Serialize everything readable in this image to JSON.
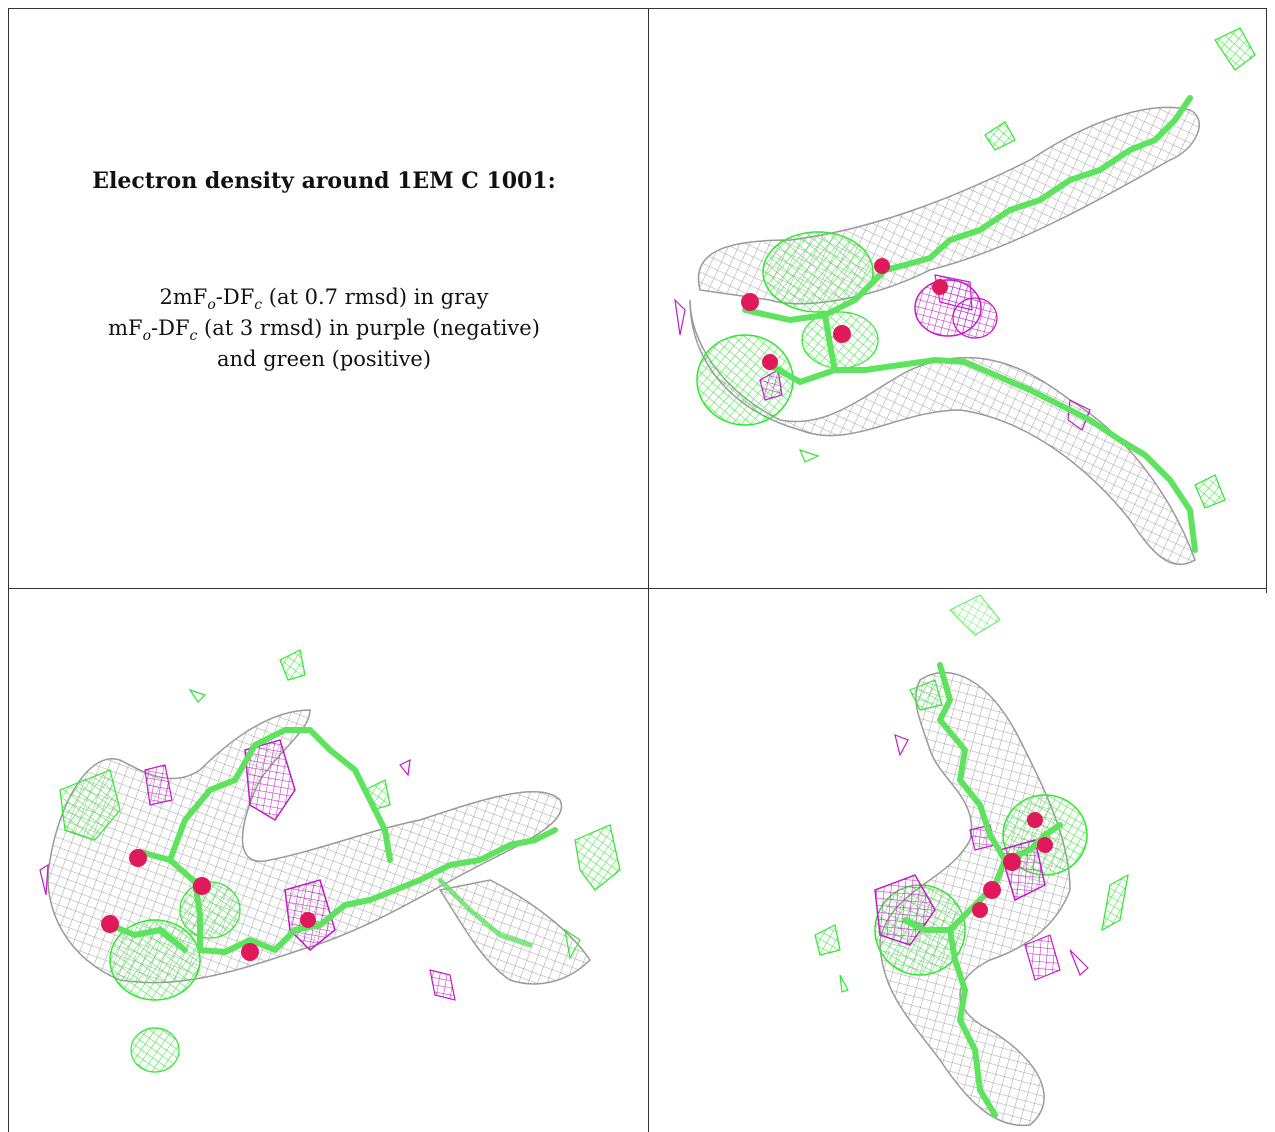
{
  "caption": {
    "title": "Electron density around 1EM C 1001:",
    "line1": {
      "a": "2mF",
      "s1": "o",
      "b": "-DF",
      "s2": "c",
      "c": " (at 0.7 rmsd) in gray"
    },
    "line2": {
      "a": "mF",
      "s1": "o",
      "b": "-DF",
      "s2": "c",
      "c": " (at 3 rmsd) in purple (negative)"
    },
    "line3": "and green (positive)"
  },
  "colors": {
    "mesh_2fofc": "#8c8c8c",
    "mesh_positive": "#2ee82e",
    "mesh_negative": "#c21ac9",
    "ligand_stick": "#5ee35e",
    "oxygen_atom": "#e0195a",
    "grid_lines": "#333333"
  },
  "panels": [
    {
      "name": "view-top-right"
    },
    {
      "name": "view-bottom-left"
    },
    {
      "name": "view-bottom-right"
    }
  ]
}
